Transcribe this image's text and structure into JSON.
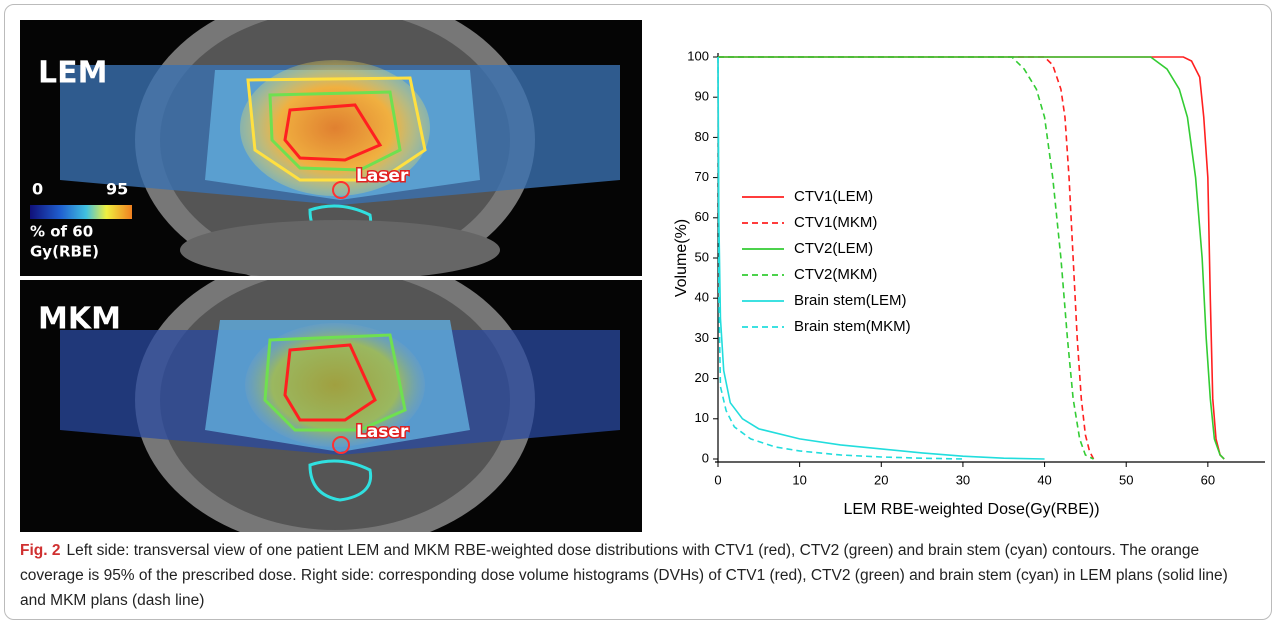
{
  "figure": {
    "top_label": "LEM",
    "bottom_label": "MKM",
    "colorbar_min": "0",
    "colorbar_max": "95",
    "colorbar_title_1": "% of 60",
    "colorbar_title_2": "Gy(RBE)",
    "marker_top": "Laser",
    "marker_bottom": "Laser"
  },
  "chart_data": {
    "type": "line",
    "xlabel": "LEM RBE-weighted Dose(Gy(RBE))",
    "ylabel": "Volume(%)",
    "xlim": [
      0,
      67
    ],
    "ylim": [
      0,
      100
    ],
    "xticks": [
      0,
      10,
      20,
      30,
      40,
      50,
      60
    ],
    "yticks": [
      0,
      10,
      20,
      30,
      40,
      50,
      60,
      70,
      80,
      90,
      100
    ],
    "grid": false,
    "legend": "left",
    "series": [
      {
        "name": "CTV1(LEM)",
        "color": "#ff2020",
        "linestyle": "solid",
        "x": [
          0,
          57,
          58,
          59,
          59.5,
          60,
          60.3,
          60.6,
          61,
          61.5,
          62
        ],
        "values": [
          100,
          100,
          99,
          95,
          85,
          70,
          40,
          15,
          5,
          1,
          0
        ]
      },
      {
        "name": "CTV1(MKM)",
        "color": "#ff2020",
        "linestyle": "dashed",
        "x": [
          0,
          40,
          41,
          42,
          42.5,
          43,
          43.5,
          44,
          44.5,
          45,
          45.5,
          46
        ],
        "values": [
          100,
          100,
          98,
          92,
          85,
          70,
          50,
          30,
          15,
          6,
          2,
          0
        ]
      },
      {
        "name": "CTV2(LEM)",
        "color": "#33cc33",
        "linestyle": "solid",
        "x": [
          0,
          53,
          55,
          56.5,
          57.5,
          58.5,
          59.3,
          59.8,
          60.3,
          60.8,
          61.5,
          62
        ],
        "values": [
          100,
          100,
          97,
          92,
          85,
          70,
          50,
          30,
          15,
          5,
          1,
          0
        ]
      },
      {
        "name": "CTV2(MKM)",
        "color": "#33cc33",
        "linestyle": "dashed",
        "x": [
          0,
          36,
          37.5,
          39,
          40,
          41,
          42,
          42.8,
          43.5,
          44.3,
          45,
          46
        ],
        "values": [
          100,
          100,
          97,
          92,
          85,
          70,
          50,
          30,
          15,
          5,
          1,
          0
        ]
      },
      {
        "name": "Brain stem(LEM)",
        "color": "#22dddd",
        "linestyle": "solid",
        "x": [
          0,
          0.1,
          0.3,
          0.7,
          1.5,
          3,
          5,
          10,
          15,
          20,
          25,
          30,
          35,
          40
        ],
        "values": [
          100,
          60,
          35,
          22,
          14,
          10,
          7.5,
          5,
          3.5,
          2.5,
          1.5,
          0.7,
          0.2,
          0
        ]
      },
      {
        "name": "Brain stem(MKM)",
        "color": "#22dddd",
        "linestyle": "dashed",
        "x": [
          0,
          0.1,
          0.3,
          1,
          2,
          4,
          7,
          10,
          15,
          20,
          25,
          30
        ],
        "values": [
          100,
          40,
          18,
          12,
          8,
          5,
          3,
          2,
          1,
          0.5,
          0.2,
          0
        ]
      }
    ]
  },
  "caption": {
    "label": "Fig. 2",
    "text": "Left side: transversal view of one patient LEM and MKM RBE-weighted dose distributions with CTV1 (red), CTV2 (green) and brain stem (cyan) contours. The orange coverage is 95% of the prescribed dose. Right side: corresponding dose volume histograms (DVHs) of CTV1 (red), CTV2 (green) and brain stem (cyan) in LEM plans (solid line) and MKM plans (dash line)"
  }
}
